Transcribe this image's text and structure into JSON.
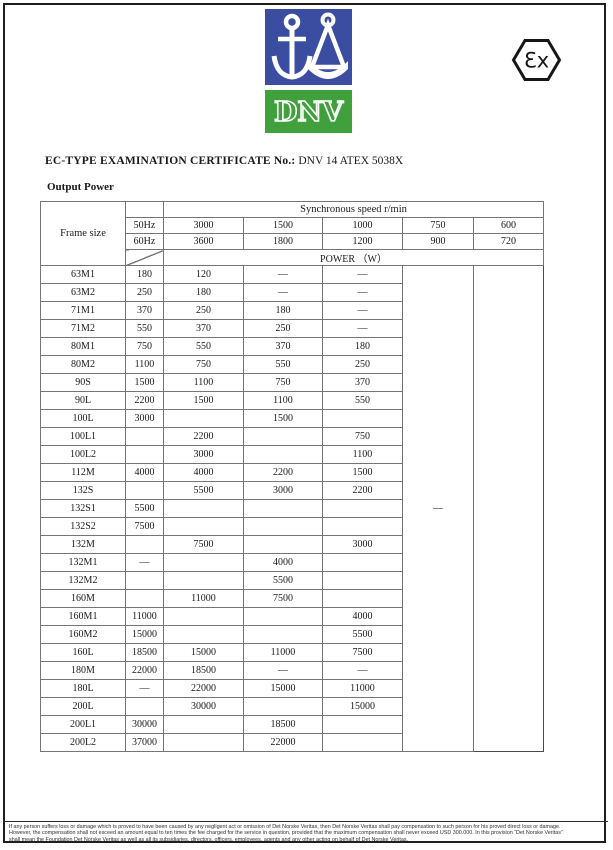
{
  "logo": {
    "dnv_text": "DNV",
    "blue_color": "#3a4da0",
    "green_color": "#3fa03c"
  },
  "ex_symbol": {
    "text": "Ɛx"
  },
  "header": {
    "title_label": "EC-TYPE EXAMINATION CERTIFICATE No.:",
    "title_value": "DNV 14 ATEX 5038X",
    "section_heading": "Output Power"
  },
  "table": {
    "frame_size_label": "Frame size",
    "sync_speed_label": "Synchronous speed  r/min",
    "power_label": "POWER （W）",
    "freq_rows": [
      {
        "label": "50Hz",
        "speeds": [
          "3000",
          "1500",
          "1000",
          "750",
          "600"
        ]
      },
      {
        "label": "60Hz",
        "speeds": [
          "3600",
          "1800",
          "1200",
          "900",
          "720"
        ]
      }
    ],
    "col600_merged_value": "—",
    "rows": [
      {
        "frame": "63M1",
        "values": [
          "180",
          "120",
          "—",
          "—"
        ]
      },
      {
        "frame": "63M2",
        "values": [
          "250",
          "180",
          "—",
          "—"
        ]
      },
      {
        "frame": "71M1",
        "values": [
          "370",
          "250",
          "180",
          "—"
        ]
      },
      {
        "frame": "71M2",
        "values": [
          "550",
          "370",
          "250",
          "—"
        ]
      },
      {
        "frame": "80M1",
        "values": [
          "750",
          "550",
          "370",
          "180"
        ]
      },
      {
        "frame": "80M2",
        "values": [
          "1100",
          "750",
          "550",
          "250"
        ]
      },
      {
        "frame": "90S",
        "values": [
          "1500",
          "1100",
          "750",
          "370"
        ]
      },
      {
        "frame": "90L",
        "values": [
          "2200",
          "1500",
          "1100",
          "550"
        ]
      },
      {
        "frame": "100L",
        "values": [
          "3000",
          "",
          "1500",
          ""
        ]
      },
      {
        "frame": "100L1",
        "values": [
          "",
          "2200",
          "",
          "750"
        ]
      },
      {
        "frame": "100L2",
        "values": [
          "",
          "3000",
          "",
          "1100"
        ]
      },
      {
        "frame": "112M",
        "values": [
          "4000",
          "4000",
          "2200",
          "1500"
        ]
      },
      {
        "frame": "132S",
        "values": [
          "",
          "5500",
          "3000",
          "2200"
        ]
      },
      {
        "frame": "132S1",
        "values": [
          "5500",
          "",
          "",
          ""
        ]
      },
      {
        "frame": "132S2",
        "values": [
          "7500",
          "",
          "",
          ""
        ]
      },
      {
        "frame": "132M",
        "values": [
          "",
          "7500",
          "",
          "3000"
        ]
      },
      {
        "frame": "132M1",
        "values": [
          "—",
          "",
          "4000",
          ""
        ]
      },
      {
        "frame": "132M2",
        "values": [
          "",
          "",
          "5500",
          ""
        ]
      },
      {
        "frame": "160M",
        "values": [
          "",
          "11000",
          "7500",
          ""
        ]
      },
      {
        "frame": "160M1",
        "values": [
          "11000",
          "",
          "",
          "4000"
        ]
      },
      {
        "frame": "160M2",
        "values": [
          "15000",
          "",
          "",
          "5500"
        ]
      },
      {
        "frame": "160L",
        "values": [
          "18500",
          "15000",
          "11000",
          "7500"
        ]
      },
      {
        "frame": "180M",
        "values": [
          "22000",
          "18500",
          "—",
          "—"
        ]
      },
      {
        "frame": "180L",
        "values": [
          "—",
          "22000",
          "15000",
          "11000"
        ]
      },
      {
        "frame": "200L",
        "values": [
          "",
          "30000",
          "",
          "15000"
        ]
      },
      {
        "frame": "200L1",
        "values": [
          "30000",
          "",
          "18500",
          ""
        ]
      },
      {
        "frame": "200L2",
        "values": [
          "37000",
          "",
          "22000",
          ""
        ]
      }
    ]
  },
  "footer": {
    "lines": [
      "If any person suffers loss or damage which is proved to have been caused by any negligent act or omission of Det Norske Veritas, then Det Norske Veritas shall pay compensation to such person for his proved direct loss or damage.",
      "However, the compensation shall not exceed an amount equal to ten times the fee charged for the service in question, provided that the maximum compensation shall never exceed USD 300.000. In this provision “Det Norske Veritas”",
      "shall mean the Foundation Det Norske Veritas as well as all its subsidiaries, directors, officers, employees, agents and any other acting on behalf of Det Norske Veritas."
    ]
  }
}
